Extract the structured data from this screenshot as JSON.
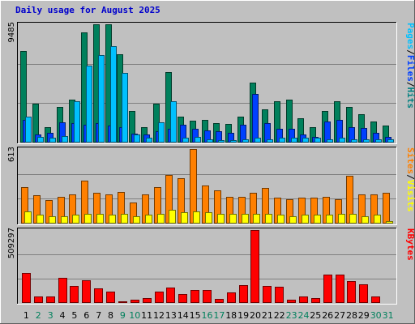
{
  "chart_data": {
    "type": "bar",
    "title": "Daily usage for August 2025",
    "categories": [
      "1",
      "2",
      "3",
      "4",
      "5",
      "6",
      "7",
      "8",
      "9",
      "10",
      "11",
      "12",
      "13",
      "14",
      "15",
      "16",
      "17",
      "18",
      "19",
      "20",
      "21",
      "22",
      "23",
      "24",
      "25",
      "26",
      "27",
      "28",
      "29",
      "30",
      "31"
    ],
    "weekend_days": [
      "2",
      "3",
      "9",
      "10",
      "16",
      "17",
      "23",
      "24",
      "30",
      "31"
    ],
    "panels": [
      {
        "id": "hits",
        "ymax_label": "9485",
        "ymax": 9485,
        "legend": [
          "Pages",
          "/",
          "Files",
          "/",
          "Hits"
        ],
        "legend_colors": [
          "#00c0ff",
          "#000000",
          "#0040ff",
          "#000000",
          "#008080"
        ],
        "series": [
          {
            "name": "Hits",
            "color": "#00805c",
            "values": [
              7320,
              3150,
              1260,
              2880,
              3420,
              8830,
              9485,
              9485,
              7090,
              2510,
              1260,
              3150,
              5660,
              2070,
              1780,
              1800,
              1530,
              1510,
              2070,
              4790,
              2690,
              3330,
              3420,
              1980,
              1260,
              2510,
              3330,
              2870,
              2250,
              1700,
              1350
            ]
          },
          {
            "name": "Files",
            "color": "#0040ff",
            "values": [
              1800,
              630,
              810,
              1620,
              1530,
              1440,
              1530,
              1350,
              1260,
              720,
              630,
              900,
              1080,
              1440,
              1080,
              1000,
              900,
              810,
              1440,
              3870,
              1530,
              1080,
              1080,
              630,
              450,
              1710,
              1800,
              1260,
              1170,
              810,
              450
            ]
          },
          {
            "name": "Pages",
            "color": "#00c0ff",
            "values": [
              2070,
              450,
              360,
              540,
              3330,
              6200,
              7000,
              7720,
              5560,
              630,
              360,
              1620,
              3330,
              360,
              450,
              270,
              180,
              180,
              270,
              360,
              270,
              360,
              360,
              360,
              360,
              270,
              360,
              270,
              270,
              270,
              270
            ]
          }
        ]
      },
      {
        "id": "visits",
        "ymax_label": "613",
        "ymax": 613,
        "legend": [
          "Sites",
          "/",
          "Visits"
        ],
        "legend_colors": [
          "#ff8000",
          "#000000",
          "#ffff00"
        ],
        "series": [
          {
            "name": "Visits",
            "color": "#ff8000",
            "values": [
              300,
              230,
              190,
              220,
              240,
              350,
              250,
              240,
              260,
              170,
              240,
              300,
              400,
              370,
              613,
              310,
              270,
              220,
              220,
              250,
              290,
              210,
              200,
              210,
              210,
              220,
              200,
              390,
              240,
              240,
              250
            ]
          },
          {
            "name": "Sites",
            "color": "#ffff00",
            "values": [
              100,
              70,
              60,
              60,
              70,
              80,
              80,
              70,
              80,
              60,
              70,
              80,
              110,
              90,
              100,
              90,
              80,
              80,
              80,
              80,
              80,
              70,
              60,
              70,
              70,
              70,
              80,
              80,
              60,
              70,
              20
            ]
          }
        ]
      },
      {
        "id": "kbytes",
        "ymax_label": "509297",
        "ymax": 509297,
        "legend": [
          "KBytes"
        ],
        "legend_colors": [
          "#ff0000"
        ],
        "series": [
          {
            "name": "KBytes",
            "color": "#ff0000",
            "values": [
              210000,
              45000,
              48000,
              175000,
              120000,
              160000,
              100000,
              80000,
              10000,
              20000,
              35000,
              80000,
              105000,
              60000,
              88000,
              88000,
              30000,
              75000,
              125000,
              509297,
              120000,
              115000,
              20000,
              45000,
              33000,
              196000,
              200000,
              150000,
              128000,
              45000,
              0
            ]
          }
        ]
      }
    ]
  }
}
